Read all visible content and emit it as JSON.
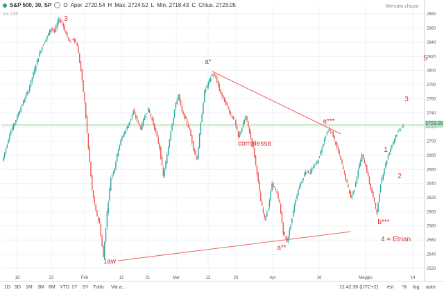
{
  "header": {
    "symbol": "S&P 500, 30, SP",
    "open_label": "O",
    "open_text": "Aper. 2720.54",
    "high_label": "H",
    "high_text": "Max. 2724.52",
    "low_label": "L",
    "low_text": "Min. 2718.43",
    "close_label": "C",
    "close_text": "Chius. 2723.05",
    "market_status": "Mercato chiuso",
    "sub_label": "Vol 2.55"
  },
  "bottom_bar": {
    "ranges": [
      "1D",
      "5D",
      "1M",
      "3M",
      "6M",
      "YTD",
      "1Y",
      "5Y",
      "Tutto",
      "Vai a..."
    ],
    "clock": "12:42:36 (UTC+2)",
    "options": [
      "est",
      "%",
      "log",
      "auto"
    ]
  },
  "colors": {
    "up": "#26a69a",
    "down": "#ef5350",
    "annotation": "#d32f2f",
    "trendline": "#f06060",
    "price_line": "#4caf50"
  },
  "chart_data": {
    "type": "line",
    "series": [
      {
        "values": [
          2672,
          2690,
          2710,
          2722,
          2735,
          2748,
          2760,
          2772,
          2790,
          2808,
          2825,
          2838,
          2848,
          2860,
          2855,
          2872,
          2868,
          2852,
          2840,
          2846,
          2836,
          2800,
          2755,
          2690,
          2630,
          2600,
          2583,
          2535,
          2600,
          2648,
          2662,
          2690,
          2706,
          2716,
          2728,
          2742,
          2729,
          2718,
          2735,
          2745,
          2730,
          2712,
          2690,
          2650,
          2680,
          2715,
          2745,
          2766,
          2741,
          2730,
          2716,
          2690,
          2675,
          2725,
          2770,
          2782,
          2795,
          2790,
          2772,
          2760,
          2750,
          2737,
          2730,
          2705,
          2720,
          2735,
          2712,
          2690,
          2655,
          2615,
          2590,
          2605,
          2640,
          2630,
          2612,
          2570,
          2558,
          2582,
          2610,
          2632,
          2645,
          2658,
          2655,
          2663,
          2670,
          2685,
          2704,
          2716,
          2712,
          2696,
          2680,
          2660,
          2640,
          2620,
          2633,
          2660,
          2680,
          2665,
          2640,
          2620,
          2598,
          2640,
          2662,
          2680,
          2695,
          2708,
          2716,
          2723
        ]
      }
    ],
    "y_ticks": [
      2520,
      2540,
      2560,
      2580,
      2600,
      2620,
      2640,
      2660,
      2680,
      2700,
      2720,
      2740,
      2760,
      2780,
      2800,
      2820,
      2840,
      2860,
      2880
    ],
    "ylim": [
      2512,
      2890
    ],
    "x_ticks": [
      "16",
      "22",
      "Feb",
      "12",
      "21",
      "Mar",
      "12",
      "26",
      "Apr",
      "16",
      "Maggio",
      "14"
    ],
    "current_price": "2723.05",
    "annotations": [
      "3",
      "a*",
      "complessa",
      "a***",
      "1",
      "2",
      "3",
      "5",
      "1aw",
      "a**",
      "b***",
      "4 = Etrian"
    ],
    "grid": true
  }
}
